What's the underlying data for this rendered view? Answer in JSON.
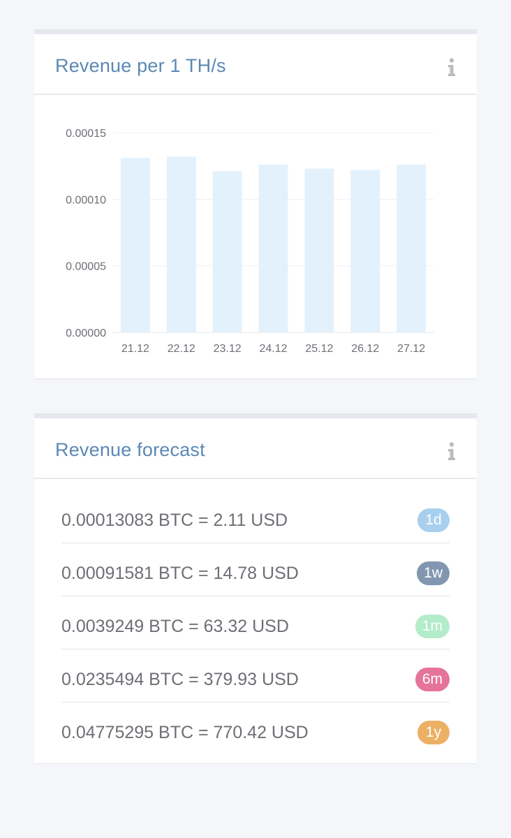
{
  "revenue_card": {
    "title": "Revenue per 1 TH/s",
    "info_icon": "info-icon"
  },
  "chart_data": {
    "type": "bar",
    "categories": [
      "21.12",
      "22.12",
      "23.12",
      "24.12",
      "25.12",
      "26.12",
      "27.12"
    ],
    "values": [
      0.000131,
      0.000132,
      0.000121,
      0.000126,
      0.000123,
      0.000122,
      0.000126
    ],
    "ylim": [
      0,
      0.00015
    ],
    "yticks": [
      "0.00000",
      "0.00005",
      "0.00010",
      "0.00015"
    ],
    "grid": true,
    "bar_color": "#e3f1fc"
  },
  "forecast_card": {
    "title": "Revenue forecast",
    "info_icon": "info-icon",
    "rows": [
      {
        "text": "0.00013083 BTC = 2.11 USD",
        "badge": "1d",
        "color": "#a8d0ee"
      },
      {
        "text": "0.00091581 BTC = 14.78 USD",
        "badge": "1w",
        "color": "#8297af"
      },
      {
        "text": "0.0039249 BTC = 63.32 USD",
        "badge": "1m",
        "color": "#b3eccb"
      },
      {
        "text": "0.0235494 BTC = 379.93 USD",
        "badge": "6m",
        "color": "#e5739b"
      },
      {
        "text": "0.04775295 BTC = 770.42 USD",
        "badge": "1y",
        "color": "#ecb064"
      }
    ]
  }
}
